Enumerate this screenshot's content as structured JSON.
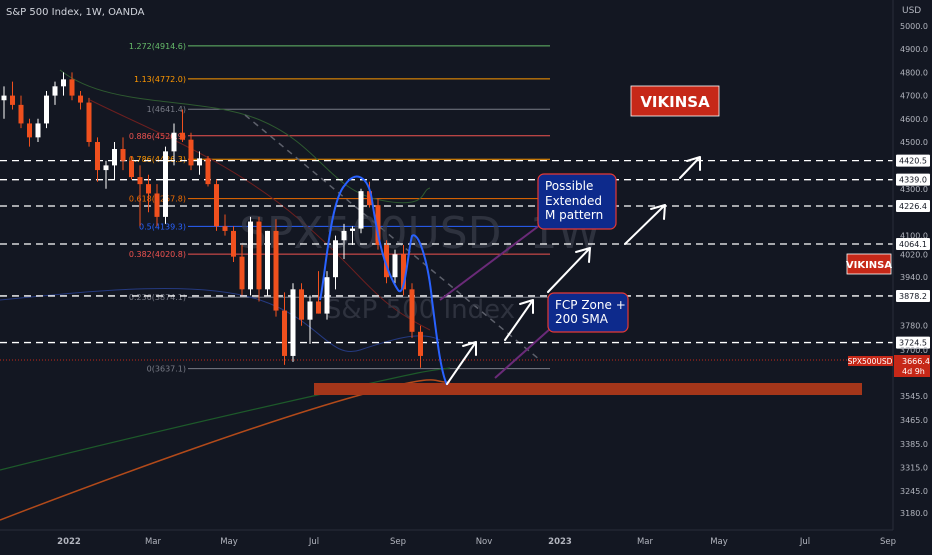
{
  "header": {
    "title": "S&P 500 Index, 1W, OANDA",
    "currency": "USD"
  },
  "watermark": {
    "line1": "SPX500USD, 1W",
    "line2": "S&P 500 Index"
  },
  "branding": {
    "tag_main": "VIKINSA",
    "tag_side": "VIKINSA"
  },
  "price_tag": {
    "symbol": "SPX500USD",
    "price": "3666.4",
    "countdown": "4d 9h"
  },
  "annotations": {
    "m_pattern": [
      "Possible",
      "Extended",
      "M pattern"
    ],
    "fcp_zone": [
      "FCP Zone +",
      "200 SMA"
    ]
  },
  "colors": {
    "background": "#131722",
    "up": "#ffffff",
    "down": "#f0501e",
    "grid_text": "#b2b5be",
    "note_fill": "#0d2a8c",
    "note_border": "#e53935",
    "zone": "#a4361a",
    "tag": "#c62818",
    "sma_blue": "#2962ff"
  },
  "chart_data": {
    "type": "candlestick",
    "title": "S&P 500 Index, 1W, OANDA",
    "ylabel": "USD",
    "ylim": [
      3150,
      5100
    ],
    "y_axis_ticks": [
      "5000.0",
      "4900.0",
      "4800.0",
      "4700.0",
      "4600.0",
      "4500.0",
      "4420.5",
      "4339.0",
      "4300.0",
      "4226.4",
      "4100.0",
      "4064.1",
      "4020.0",
      "3940.0",
      "3878.2",
      "3780.0",
      "3724.5",
      "3700.0",
      "3666.4",
      "3545.0",
      "3465.0",
      "3385.0",
      "3315.0",
      "3245.0",
      "3180.0"
    ],
    "x_axis_ticks": [
      "2022",
      "Mar",
      "May",
      "Jul",
      "Sep",
      "Nov",
      "2023",
      "Mar",
      "May",
      "Jul",
      "Sep"
    ],
    "fibonacci": [
      {
        "label": "1.272(4914.6)",
        "value": 4914.6,
        "color": "#66bb6a"
      },
      {
        "label": "1.13(4772.0)",
        "value": 4772.0,
        "color": "#ff9800"
      },
      {
        "label": "1(4641.4)",
        "value": 4641.4,
        "color": "#787b86"
      },
      {
        "label": "0.886(4526.9)",
        "value": 4526.9,
        "color": "#ef5350"
      },
      {
        "label": "0.786(4426.3)",
        "value": 4426.3,
        "color": "#ff9800"
      },
      {
        "label": "0.618(4257.8)",
        "value": 4257.8,
        "color": "#ef6c00"
      },
      {
        "label": "0.5(4139.3)",
        "value": 4139.3,
        "color": "#2962ff"
      },
      {
        "label": "0.382(4020.8)",
        "value": 4020.8,
        "color": "#ef5350"
      },
      {
        "label": "0.236(3874.1)",
        "value": 3874.1,
        "color": "#787b86"
      },
      {
        "label": "0(3637.1)",
        "value": 3637.1,
        "color": "#787b86"
      }
    ],
    "horizontal_levels": [
      4420.5,
      4339.0,
      4226.4,
      4064.1,
      3878.2,
      3724.5
    ],
    "current_price": 3666.4,
    "fcp_zone": [
      3573,
      3610
    ],
    "candles": [
      {
        "o": 4680,
        "h": 4740,
        "l": 4600,
        "c": 4700
      },
      {
        "o": 4700,
        "h": 4760,
        "l": 4640,
        "c": 4660
      },
      {
        "o": 4660,
        "h": 4700,
        "l": 4560,
        "c": 4580
      },
      {
        "o": 4580,
        "h": 4600,
        "l": 4480,
        "c": 4520
      },
      {
        "o": 4520,
        "h": 4600,
        "l": 4500,
        "c": 4580
      },
      {
        "o": 4580,
        "h": 4720,
        "l": 4560,
        "c": 4700
      },
      {
        "o": 4700,
        "h": 4760,
        "l": 4660,
        "c": 4740
      },
      {
        "o": 4740,
        "h": 4800,
        "l": 4700,
        "c": 4770
      },
      {
        "o": 4770,
        "h": 4800,
        "l": 4680,
        "c": 4700
      },
      {
        "o": 4700,
        "h": 4720,
        "l": 4640,
        "c": 4670
      },
      {
        "o": 4670,
        "h": 4690,
        "l": 4480,
        "c": 4500
      },
      {
        "o": 4500,
        "h": 4520,
        "l": 4330,
        "c": 4380
      },
      {
        "o": 4380,
        "h": 4420,
        "l": 4300,
        "c": 4400
      },
      {
        "o": 4400,
        "h": 4500,
        "l": 4340,
        "c": 4470
      },
      {
        "o": 4470,
        "h": 4520,
        "l": 4380,
        "c": 4420
      },
      {
        "o": 4420,
        "h": 4440,
        "l": 4340,
        "c": 4350
      },
      {
        "o": 4350,
        "h": 4400,
        "l": 4140,
        "c": 4320
      },
      {
        "o": 4320,
        "h": 4360,
        "l": 4200,
        "c": 4280
      },
      {
        "o": 4280,
        "h": 4320,
        "l": 4140,
        "c": 4180
      },
      {
        "o": 4180,
        "h": 4480,
        "l": 4150,
        "c": 4460
      },
      {
        "o": 4460,
        "h": 4580,
        "l": 4400,
        "c": 4540
      },
      {
        "o": 4540,
        "h": 4640,
        "l": 4500,
        "c": 4510
      },
      {
        "o": 4510,
        "h": 4540,
        "l": 4380,
        "c": 4400
      },
      {
        "o": 4400,
        "h": 4460,
        "l": 4360,
        "c": 4430
      },
      {
        "o": 4430,
        "h": 4440,
        "l": 4310,
        "c": 4320
      },
      {
        "o": 4320,
        "h": 4340,
        "l": 4120,
        "c": 4140
      },
      {
        "o": 4140,
        "h": 4190,
        "l": 4100,
        "c": 4120
      },
      {
        "o": 4120,
        "h": 4140,
        "l": 3990,
        "c": 4010
      },
      {
        "o": 4010,
        "h": 4060,
        "l": 3880,
        "c": 3900
      },
      {
        "o": 3900,
        "h": 4180,
        "l": 3880,
        "c": 4160
      },
      {
        "o": 4160,
        "h": 4180,
        "l": 3860,
        "c": 3900
      },
      {
        "o": 3900,
        "h": 4120,
        "l": 3880,
        "c": 4120
      },
      {
        "o": 4120,
        "h": 4170,
        "l": 3810,
        "c": 3830
      },
      {
        "o": 3830,
        "h": 3890,
        "l": 3650,
        "c": 3680
      },
      {
        "o": 3680,
        "h": 3920,
        "l": 3660,
        "c": 3900
      },
      {
        "o": 3900,
        "h": 3920,
        "l": 3780,
        "c": 3800
      },
      {
        "o": 3800,
        "h": 3880,
        "l": 3720,
        "c": 3860
      },
      {
        "o": 3860,
        "h": 3960,
        "l": 3820,
        "c": 3820
      },
      {
        "o": 3820,
        "h": 3960,
        "l": 3800,
        "c": 3940
      },
      {
        "o": 3940,
        "h": 4100,
        "l": 3900,
        "c": 4080
      },
      {
        "o": 4080,
        "h": 4150,
        "l": 4000,
        "c": 4120
      },
      {
        "o": 4120,
        "h": 4140,
        "l": 4060,
        "c": 4130
      },
      {
        "o": 4130,
        "h": 4300,
        "l": 4110,
        "c": 4290
      },
      {
        "o": 4290,
        "h": 4330,
        "l": 4220,
        "c": 4230
      },
      {
        "o": 4230,
        "h": 4260,
        "l": 4040,
        "c": 4060
      },
      {
        "o": 4060,
        "h": 4080,
        "l": 3920,
        "c": 3940
      },
      {
        "o": 3940,
        "h": 4040,
        "l": 3920,
        "c": 4020
      },
      {
        "o": 4020,
        "h": 4060,
        "l": 3880,
        "c": 3900
      },
      {
        "o": 3900,
        "h": 3920,
        "l": 3740,
        "c": 3760
      },
      {
        "o": 3760,
        "h": 3780,
        "l": 3640,
        "c": 3680
      }
    ]
  }
}
